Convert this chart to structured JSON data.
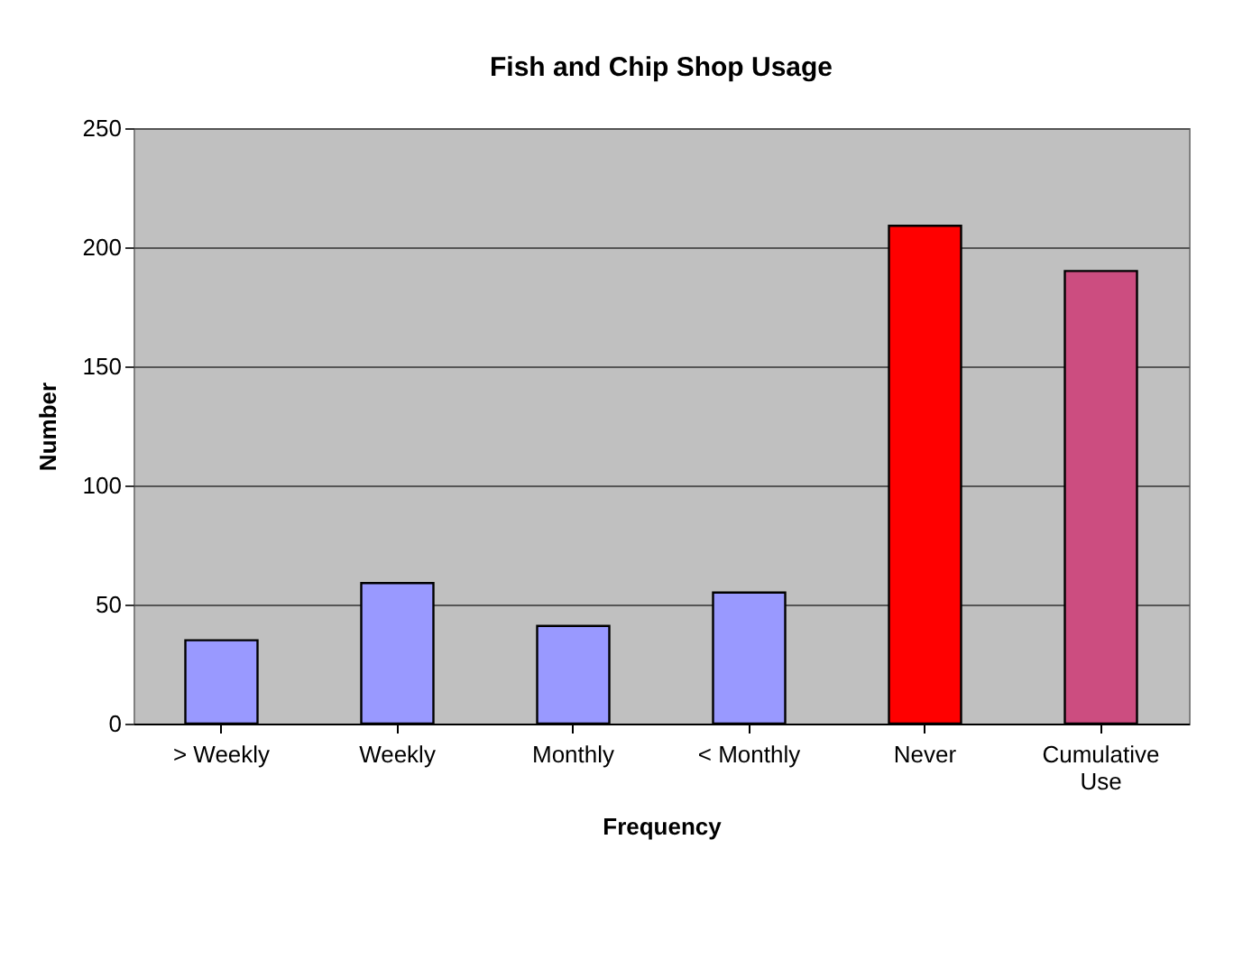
{
  "chart_data": {
    "type": "bar",
    "title": "Fish and Chip Shop Usage",
    "xlabel": "Frequency",
    "ylabel": "Number",
    "categories": [
      "> Weekly",
      "Weekly",
      "Monthly",
      "< Monthly",
      "Never",
      "Cumulative Use"
    ],
    "values": [
      35,
      59,
      41,
      55,
      209,
      190
    ],
    "colors": [
      "#9999ff",
      "#9999ff",
      "#9999ff",
      "#9999ff",
      "#ff0000",
      "#cc4d80"
    ],
    "ylim": [
      0,
      250
    ],
    "yticks": [
      0,
      50,
      100,
      150,
      200,
      250
    ],
    "grid": "y"
  }
}
